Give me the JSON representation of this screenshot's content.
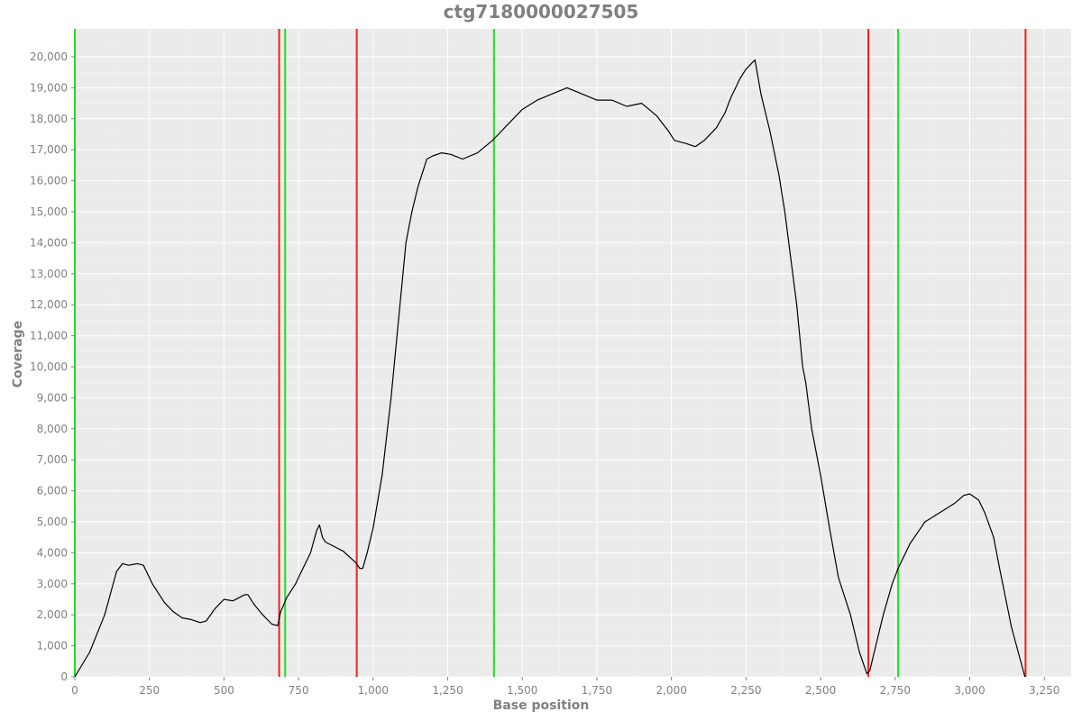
{
  "chart_data": {
    "type": "line",
    "title": "ctg7180000027505",
    "xlabel": "Base position",
    "ylabel": "Coverage",
    "xlim": [
      0,
      3340
    ],
    "ylim": [
      0,
      20900
    ],
    "x_ticks": [
      0,
      250,
      500,
      750,
      1000,
      1250,
      1500,
      1750,
      2000,
      2250,
      2500,
      2750,
      3000,
      3250
    ],
    "x_tick_labels": [
      "0",
      "250",
      "500",
      "750",
      "1,000",
      "1,250",
      "1,500",
      "1,750",
      "2,000",
      "2,250",
      "2,500",
      "2,750",
      "3,000",
      "3,250"
    ],
    "y_ticks": [
      0,
      1000,
      2000,
      3000,
      4000,
      5000,
      6000,
      7000,
      8000,
      9000,
      10000,
      11000,
      12000,
      13000,
      14000,
      15000,
      16000,
      17000,
      18000,
      19000,
      20000
    ],
    "y_tick_labels": [
      "0",
      "1,000",
      "2,000",
      "3,000",
      "4,000",
      "5,000",
      "6,000",
      "7,000",
      "8,000",
      "9,000",
      "10,000",
      "11,000",
      "12,000",
      "13,000",
      "14,000",
      "15,000",
      "16,000",
      "17,000",
      "18,000",
      "19,000",
      "20,000"
    ],
    "grid": true,
    "series": [
      {
        "color": "#000000",
        "x": [
          0,
          50,
          100,
          140,
          160,
          180,
          210,
          230,
          260,
          300,
          330,
          360,
          390,
          420,
          440,
          470,
          500,
          530,
          570,
          580,
          600,
          630,
          660,
          680,
          690,
          710,
          720,
          740,
          760,
          790,
          810,
          820,
          830,
          840,
          870,
          900,
          940,
          955,
          965,
          980,
          1000,
          1030,
          1060,
          1090,
          1110,
          1130,
          1150,
          1160,
          1170,
          1180,
          1200,
          1230,
          1260,
          1300,
          1350,
          1400,
          1420,
          1450,
          1480,
          1500,
          1550,
          1600,
          1650,
          1700,
          1750,
          1800,
          1850,
          1900,
          1950,
          1990,
          2010,
          2050,
          2080,
          2110,
          2150,
          2180,
          2200,
          2230,
          2250,
          2270,
          2280,
          2300,
          2330,
          2360,
          2380,
          2400,
          2420,
          2440,
          2450,
          2470,
          2500,
          2530,
          2560,
          2600,
          2630,
          2655,
          2665,
          2680,
          2710,
          2740,
          2760,
          2800,
          2850,
          2900,
          2950,
          2980,
          3000,
          3030,
          3050,
          3080,
          3100,
          3140,
          3185
        ],
        "y": [
          0,
          800,
          2000,
          3400,
          3650,
          3600,
          3650,
          3600,
          3000,
          2400,
          2100,
          1900,
          1850,
          1750,
          1800,
          2200,
          2500,
          2450,
          2650,
          2650,
          2350,
          2000,
          1700,
          1650,
          2100,
          2550,
          2700,
          3000,
          3400,
          4000,
          4700,
          4900,
          4500,
          4350,
          4200,
          4050,
          3700,
          3500,
          3500,
          4000,
          4800,
          6500,
          9000,
          12000,
          14000,
          15000,
          15800,
          16100,
          16400,
          16700,
          16800,
          16900,
          16850,
          16700,
          16900,
          17300,
          17500,
          17800,
          18100,
          18300,
          18600,
          18800,
          19000,
          18800,
          18600,
          18600,
          18400,
          18500,
          18100,
          17600,
          17300,
          17200,
          17100,
          17300,
          17700,
          18200,
          18700,
          19300,
          19600,
          19800,
          19900,
          18800,
          17600,
          16200,
          15000,
          13500,
          12000,
          10000,
          9500,
          8000,
          6500,
          4800,
          3200,
          2000,
          800,
          100,
          200,
          800,
          2000,
          3000,
          3500,
          4300,
          5000,
          5300,
          5600,
          5850,
          5900,
          5700,
          5300,
          4500,
          3500,
          1600,
          0
        ]
      }
    ],
    "vertical_lines": [
      {
        "x": 0,
        "color": "#22dd22"
      },
      {
        "x": 685,
        "color": "#ee2222"
      },
      {
        "x": 705,
        "color": "#22dd22"
      },
      {
        "x": 945,
        "color": "#ee2222"
      },
      {
        "x": 1405,
        "color": "#22dd22"
      },
      {
        "x": 2660,
        "color": "#ee2222"
      },
      {
        "x": 2760,
        "color": "#22dd22"
      },
      {
        "x": 3187,
        "color": "#ee2222"
      }
    ],
    "colors": {
      "plot_background": "#ebebeb",
      "gridline": "#ffffff",
      "axis_text": "#808080",
      "green_line": "#22dd22",
      "red_line": "#ee2222"
    }
  }
}
